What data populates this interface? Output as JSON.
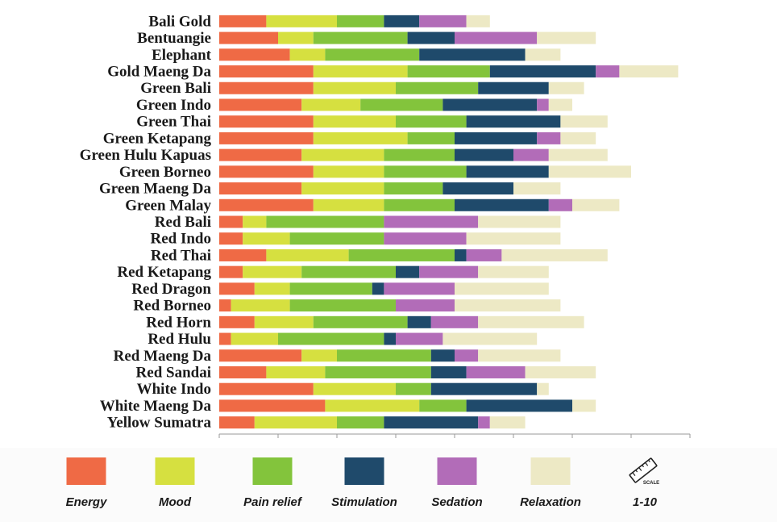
{
  "chart_data": {
    "type": "bar",
    "orientation": "horizontal",
    "stacked": true,
    "categories": [
      "Bali Gold",
      "Bentuangie",
      "Elephant",
      "Gold Maeng Da",
      "Green Bali",
      "Green Indo",
      "Green Thai",
      "Green Ketapang",
      "Green Hulu Kapuas",
      "Green Borneo",
      "Green Maeng Da",
      "Green Malay",
      "Red Bali",
      "Red Indo",
      "Red Thai",
      "Red Ketapang",
      "Red Dragon",
      "Red Borneo",
      "Red Horn",
      "Red Hulu",
      "Red Maeng Da",
      "Red Sandai",
      "White Indo",
      "White Maeng Da",
      "Yellow Sumatra"
    ],
    "series": [
      {
        "name": "Energy",
        "color": "#ef6a45",
        "values": [
          4,
          5,
          6,
          8,
          8,
          7,
          8,
          8,
          7,
          8,
          7,
          8,
          2,
          2,
          4,
          2,
          3,
          1,
          3,
          1,
          7,
          4,
          8,
          9,
          3
        ]
      },
      {
        "name": "Mood",
        "color": "#d6e040",
        "values": [
          6,
          3,
          3,
          8,
          7,
          5,
          7,
          8,
          7,
          6,
          7,
          6,
          2,
          4,
          7,
          5,
          3,
          5,
          5,
          4,
          3,
          5,
          7,
          8,
          7
        ]
      },
      {
        "name": "Pain relief",
        "color": "#83c43c",
        "values": [
          4,
          8,
          8,
          7,
          7,
          7,
          6,
          4,
          6,
          7,
          5,
          6,
          10,
          8,
          9,
          8,
          7,
          9,
          8,
          9,
          8,
          9,
          3,
          4,
          4
        ]
      },
      {
        "name": "Stimulation",
        "color": "#1f4a6b",
        "values": [
          3,
          4,
          9,
          9,
          6,
          8,
          8,
          7,
          5,
          7,
          6,
          8,
          0,
          0,
          1,
          2,
          1,
          0,
          2,
          1,
          2,
          3,
          9,
          9,
          8
        ]
      },
      {
        "name": "Sedation",
        "color": "#b26cb8",
        "values": [
          4,
          7,
          0,
          2,
          0,
          1,
          0,
          2,
          3,
          0,
          0,
          2,
          8,
          7,
          3,
          5,
          6,
          5,
          4,
          4,
          2,
          5,
          0,
          0,
          1
        ]
      },
      {
        "name": "Relaxation",
        "color": "#ede9c5",
        "values": [
          2,
          5,
          3,
          5,
          3,
          2,
          4,
          3,
          5,
          7,
          4,
          4,
          7,
          8,
          9,
          6,
          8,
          9,
          9,
          8,
          7,
          6,
          1,
          2,
          3
        ]
      }
    ],
    "xlim": [
      0,
      40
    ],
    "x_ticks": [
      0,
      5,
      10,
      15,
      20,
      25,
      30,
      35,
      40
    ],
    "grid": false,
    "legend_position": "bottom",
    "legend_extra": {
      "icon": "ruler-icon",
      "icon_text": "SCALE",
      "label": "1-10"
    }
  }
}
